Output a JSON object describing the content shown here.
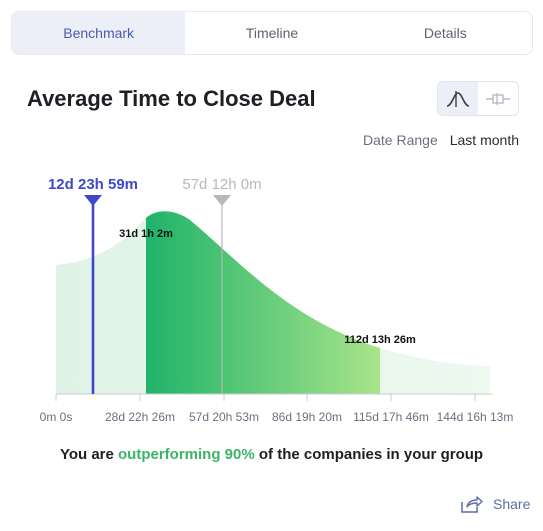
{
  "tabs": [
    "Benchmark",
    "Timeline",
    "Details"
  ],
  "title": "Average Time to Close Deal",
  "date_range": {
    "label": "Date Range",
    "value": "Last month"
  },
  "view_toggle": {
    "options": [
      "curve-icon",
      "boxplot-icon"
    ],
    "active": "curve-icon"
  },
  "chart_data": {
    "type": "area",
    "title": "",
    "markers": [
      {
        "label": "12d 23h 59m",
        "color": "#3f48cc"
      },
      {
        "label": "57d 12h 0m",
        "color": "#b8b8b8"
      }
    ],
    "percentile_labels": [
      "31d 1h 2m",
      "112d 13h 26m"
    ],
    "x_ticks": [
      "0m 0s",
      "28d 22h 26m",
      "57d 20h 53m",
      "86d 19h 20m",
      "115d 17h 46m",
      "144d 16h 13m"
    ],
    "colors": {
      "highlight": "#2fbf71",
      "background": "#dff3e6"
    }
  },
  "summary": {
    "prefix": "You are ",
    "highlight": "outperforming 90%",
    "suffix": " of the companies in your group"
  },
  "share_label": "Share"
}
